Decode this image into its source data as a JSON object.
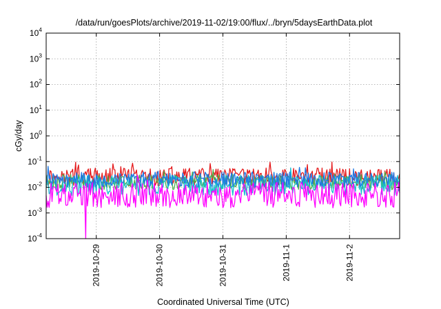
{
  "chart_data": {
    "type": "line",
    "title": "/data/run/goesPlots/archive/2019-11-02/19:00/flux/../bryn/5daysEarthData.plot",
    "xlabel": "Coordinated Universal Time (UTC)",
    "ylabel": "cGy/day",
    "yscale": "log",
    "ylim": [
      0.0001,
      10000
    ],
    "y_ticks": [
      {
        "base": "10",
        "exp": "-4",
        "value": 0.0001
      },
      {
        "base": "10",
        "exp": "-3",
        "value": 0.001
      },
      {
        "base": "10",
        "exp": "-2",
        "value": 0.01
      },
      {
        "base": "10",
        "exp": "-1",
        "value": 0.1
      },
      {
        "base": "10",
        "exp": "0",
        "value": 1
      },
      {
        "base": "10",
        "exp": "1",
        "value": 10
      },
      {
        "base": "10",
        "exp": "2",
        "value": 100
      },
      {
        "base": "10",
        "exp": "3",
        "value": 1000
      },
      {
        "base": "10",
        "exp": "4",
        "value": 10000
      }
    ],
    "xlim": [
      "2019-10-28T05:00",
      "2019-11-02T19:00"
    ],
    "x_ticks": [
      {
        "label": "2019-10-29",
        "value": "2019-10-29T00:00"
      },
      {
        "label": "2019-10-30",
        "value": "2019-10-30T00:00"
      },
      {
        "label": "2019-10-31",
        "value": "2019-10-31T00:00"
      },
      {
        "label": "2019-11-1",
        "value": "2019-11-01T00:00"
      },
      {
        "label": "2019-11-2",
        "value": "2019-11-02T00:00"
      }
    ],
    "grid": true,
    "series": [
      {
        "color": "#e41a1c",
        "typical": 0.025,
        "spread": 0.35
      },
      {
        "color": "#4daf4a",
        "typical": 0.016,
        "spread": 0.3
      },
      {
        "color": "#17becf",
        "typical": 0.012,
        "spread": 0.4
      },
      {
        "color": "#1f78e4",
        "typical": 0.02,
        "spread": 0.3
      },
      {
        "color": "#ff00ff",
        "typical": 0.005,
        "spread": 0.5,
        "dips": [
          {
            "x": "2019-10-28T20:00",
            "y": 0.0001
          }
        ]
      }
    ]
  }
}
